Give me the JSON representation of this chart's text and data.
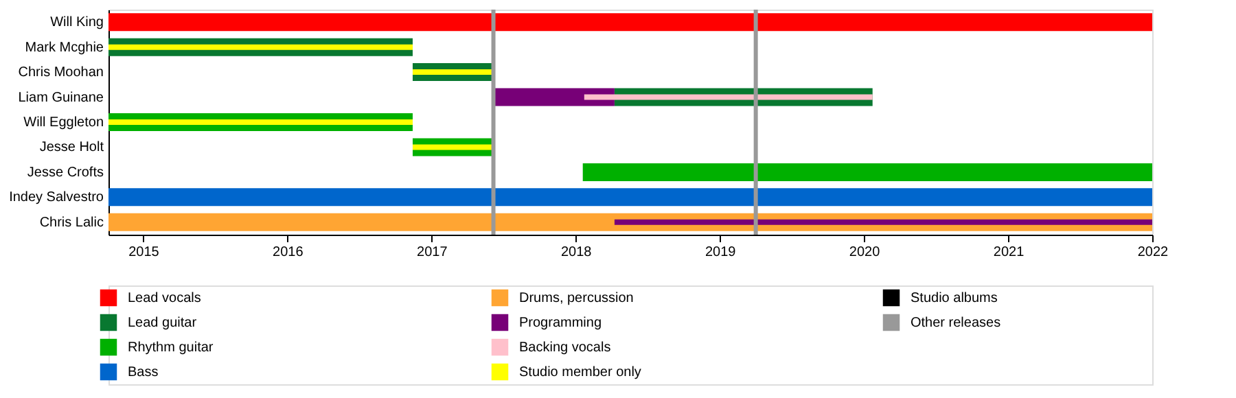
{
  "chart_data": {
    "type": "bar",
    "orientation": "horizontal",
    "categories": [
      "Will King",
      "Mark Mcghie",
      "Chris Moohan",
      "Liam Guinane",
      "Will Eggleton",
      "Jesse Holt",
      "Jesse Crofts",
      "Indey Salvestro",
      "Chris Lalic"
    ],
    "series": [
      {
        "name": "Lead vocals",
        "color": "#ff0000",
        "values": [
          7.24,
          null,
          null,
          null,
          null,
          null,
          null,
          null,
          null
        ],
        "base": [
          2014.76,
          null,
          null,
          null,
          null,
          null,
          null,
          null,
          null
        ]
      },
      {
        "name": "Lead guitar",
        "color": "#087830",
        "values": [
          null,
          2.11,
          0.56,
          1.79,
          null,
          null,
          null,
          null,
          null
        ],
        "base": [
          null,
          2014.76,
          2016.87,
          2018.27,
          null,
          null,
          null,
          null,
          null
        ]
      },
      {
        "name": "Rhythm guitar",
        "color": "#00b000",
        "values": [
          null,
          null,
          null,
          null,
          2.11,
          0.56,
          3.95,
          null,
          null
        ],
        "base": [
          null,
          null,
          null,
          null,
          2014.76,
          2016.87,
          2018.05,
          null,
          null
        ]
      },
      {
        "name": "Bass",
        "color": "#0066cc",
        "values": [
          null,
          null,
          null,
          null,
          null,
          null,
          null,
          7.24,
          null
        ],
        "base": [
          null,
          null,
          null,
          null,
          null,
          null,
          null,
          2014.76,
          null
        ]
      },
      {
        "name": "Drums, percussion",
        "color": "#ffa533",
        "values": [
          null,
          null,
          null,
          null,
          null,
          null,
          null,
          null,
          7.24
        ],
        "base": [
          null,
          null,
          null,
          null,
          null,
          null,
          null,
          null,
          2014.76
        ]
      },
      {
        "name": "Programming",
        "color": "#770077",
        "values": [
          null,
          null,
          null,
          0.84,
          null,
          null,
          null,
          null,
          3.73
        ],
        "base": [
          null,
          null,
          null,
          2017.43,
          null,
          null,
          null,
          null,
          2018.27
        ]
      },
      {
        "name": "Backing vocals",
        "color": "#ffc0cb",
        "values": [
          null,
          null,
          null,
          2.0,
          null,
          null,
          null,
          null,
          null
        ],
        "base": [
          null,
          null,
          null,
          2018.06,
          null,
          null,
          null,
          null,
          null
        ]
      },
      {
        "name": "Studio member only",
        "color": "#ffff00",
        "values": [
          null,
          2.11,
          0.56,
          null,
          2.11,
          0.56,
          null,
          null,
          null
        ],
        "base": [
          null,
          2014.76,
          2016.87,
          null,
          2014.76,
          2016.87,
          null,
          null,
          null
        ]
      },
      {
        "name": "Studio albums",
        "color": "#000000",
        "values": [
          null,
          null,
          null,
          null,
          null,
          null,
          null,
          null,
          null
        ],
        "base": [
          null,
          null,
          null,
          null,
          null,
          null,
          null,
          null,
          null
        ]
      }
    ],
    "ref_lines": [
      {
        "axis": "x",
        "value": 2017.43,
        "label": "Other releases",
        "color": "#999999"
      },
      {
        "axis": "x",
        "value": 2019.25,
        "color": "#999999"
      }
    ],
    "xlim": [
      2014.76,
      2022
    ],
    "xticks": [
      2015,
      2016,
      2017,
      2018,
      2019,
      2020,
      2021,
      2022
    ],
    "legend": "bottom"
  }
}
